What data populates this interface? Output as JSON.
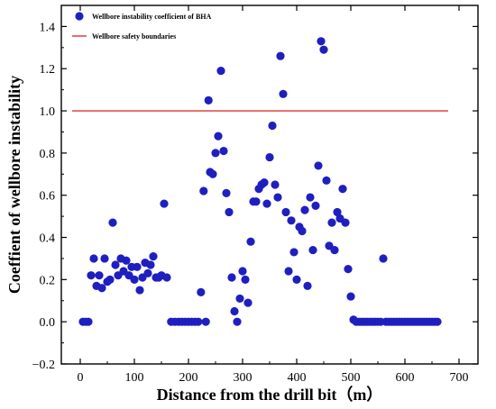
{
  "chart_data": {
    "type": "scatter",
    "xlabel": "Distance from the drill bit（m）",
    "ylabel": "Coeffient of wellbore instability",
    "xlim": [
      -35,
      735
    ],
    "ylim": [
      -0.2,
      1.5
    ],
    "xticks": [
      0,
      100,
      200,
      300,
      400,
      500,
      600,
      700
    ],
    "yticks": [
      -0.2,
      0.0,
      0.2,
      0.4,
      0.6,
      0.8,
      1.0,
      1.2,
      1.4
    ],
    "xtick_labels": [
      "0",
      "100",
      "200",
      "300",
      "400",
      "500",
      "600",
      "700"
    ],
    "ytick_labels": [
      "−0.2",
      "0.0",
      "0.2",
      "0.4",
      "0.6",
      "0.8",
      "1.0",
      "1.2",
      "1.4"
    ],
    "grid": false,
    "legend_position": "top-left",
    "series": [
      {
        "name": "Wellbore instability coefficient of BHA",
        "kind": "scatter",
        "color": "#1f1fbf",
        "points": [
          [
            5,
            0
          ],
          [
            10,
            0
          ],
          [
            15,
            0
          ],
          [
            20,
            0.22
          ],
          [
            25,
            0.3
          ],
          [
            30,
            0.17
          ],
          [
            35,
            0.22
          ],
          [
            40,
            0.16
          ],
          [
            45,
            0.3
          ],
          [
            50,
            0.19
          ],
          [
            55,
            0.2
          ],
          [
            60,
            0.47
          ],
          [
            65,
            0.27
          ],
          [
            70,
            0.22
          ],
          [
            75,
            0.3
          ],
          [
            80,
            0.24
          ],
          [
            85,
            0.29
          ],
          [
            90,
            0.22
          ],
          [
            95,
            0.26
          ],
          [
            100,
            0.2
          ],
          [
            105,
            0.26
          ],
          [
            110,
            0.15
          ],
          [
            115,
            0.21
          ],
          [
            120,
            0.28
          ],
          [
            125,
            0.23
          ],
          [
            130,
            0.27
          ],
          [
            135,
            0.31
          ],
          [
            140,
            0.21
          ],
          [
            145,
            0.21
          ],
          [
            150,
            0.22
          ],
          [
            155,
            0.56
          ],
          [
            160,
            0.21
          ],
          [
            168,
            0
          ],
          [
            175,
            0
          ],
          [
            182,
            0
          ],
          [
            188,
            0
          ],
          [
            194,
            0
          ],
          [
            200,
            0
          ],
          [
            206,
            0
          ],
          [
            212,
            0
          ],
          [
            218,
            0
          ],
          [
            223,
            0.14
          ],
          [
            228,
            0.62
          ],
          [
            232,
            0
          ],
          [
            237,
            1.05
          ],
          [
            240,
            0.71
          ],
          [
            245,
            0.7
          ],
          [
            250,
            0.8
          ],
          [
            255,
            0.88
          ],
          [
            260,
            1.19
          ],
          [
            265,
            0.81
          ],
          [
            270,
            0.61
          ],
          [
            275,
            0.52
          ],
          [
            280,
            0.21
          ],
          [
            285,
            0.05
          ],
          [
            290,
            0
          ],
          [
            295,
            0.11
          ],
          [
            300,
            0.24
          ],
          [
            305,
            0.2
          ],
          [
            310,
            0.09
          ],
          [
            315,
            0.38
          ],
          [
            320,
            0.57
          ],
          [
            325,
            0.57
          ],
          [
            330,
            0.63
          ],
          [
            335,
            0.65
          ],
          [
            340,
            0.66
          ],
          [
            345,
            0.56
          ],
          [
            350,
            0.78
          ],
          [
            355,
            0.93
          ],
          [
            360,
            0.65
          ],
          [
            365,
            0.59
          ],
          [
            370,
            1.26
          ],
          [
            375,
            1.08
          ],
          [
            380,
            0.52
          ],
          [
            385,
            0.24
          ],
          [
            390,
            0.48
          ],
          [
            395,
            0.33
          ],
          [
            400,
            0.2
          ],
          [
            405,
            0.45
          ],
          [
            410,
            0.43
          ],
          [
            415,
            0.53
          ],
          [
            420,
            0.17
          ],
          [
            425,
            0.59
          ],
          [
            430,
            0.34
          ],
          [
            435,
            0.55
          ],
          [
            440,
            0.74
          ],
          [
            445,
            1.33
          ],
          [
            450,
            1.29
          ],
          [
            455,
            0.67
          ],
          [
            460,
            0.36
          ],
          [
            465,
            0.47
          ],
          [
            470,
            0.34
          ],
          [
            475,
            0.52
          ],
          [
            480,
            0.49
          ],
          [
            485,
            0.63
          ],
          [
            490,
            0.47
          ],
          [
            495,
            0.25
          ],
          [
            500,
            0.12
          ],
          [
            505,
            0.01
          ],
          [
            510,
            0
          ],
          [
            515,
            0
          ],
          [
            520,
            0
          ],
          [
            525,
            0
          ],
          [
            530,
            0
          ],
          [
            535,
            0
          ],
          [
            540,
            0
          ],
          [
            545,
            0
          ],
          [
            550,
            0
          ],
          [
            555,
            0
          ],
          [
            560,
            0.3
          ],
          [
            565,
            0
          ],
          [
            570,
            0
          ],
          [
            575,
            0
          ],
          [
            580,
            0
          ],
          [
            585,
            0
          ],
          [
            590,
            0
          ],
          [
            595,
            0
          ],
          [
            600,
            0
          ],
          [
            605,
            0
          ],
          [
            610,
            0
          ],
          [
            615,
            0
          ],
          [
            620,
            0
          ],
          [
            625,
            0
          ],
          [
            630,
            0
          ],
          [
            635,
            0
          ],
          [
            640,
            0
          ],
          [
            645,
            0
          ],
          [
            650,
            0
          ],
          [
            655,
            0
          ],
          [
            660,
            0
          ]
        ]
      },
      {
        "name": "Wellbore safety boundaries",
        "kind": "line",
        "color": "#e03030",
        "x": [
          -15,
          680
        ],
        "y": [
          1.0,
          1.0
        ]
      }
    ]
  }
}
